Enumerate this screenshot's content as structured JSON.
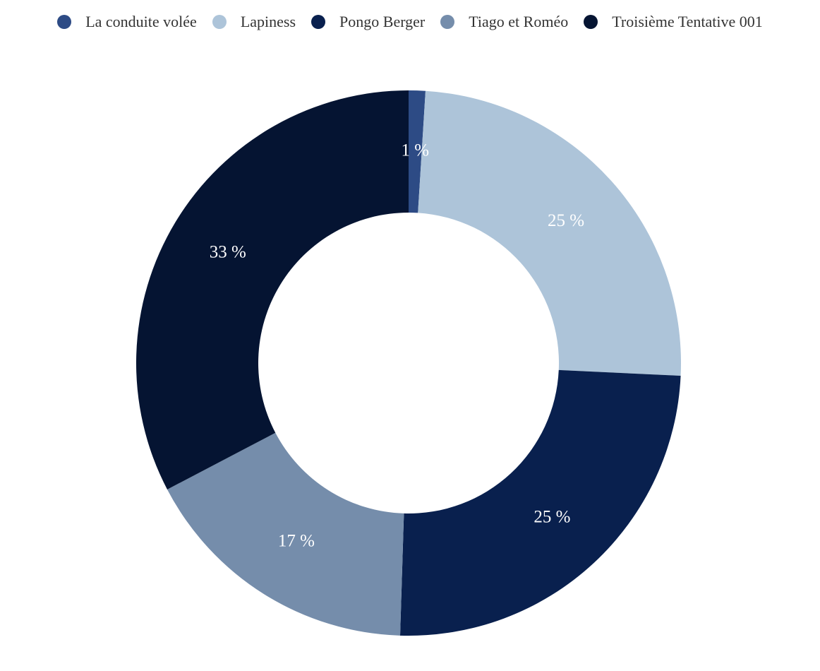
{
  "chart_data": {
    "type": "pie",
    "donut": true,
    "legend_position": "top",
    "slices": [
      {
        "name": "La conduite volée",
        "value": 1,
        "label": "1 %",
        "color": "#2d4b85"
      },
      {
        "name": "Lapiness",
        "value": 25,
        "label": "25 %",
        "color": "#adc4d9"
      },
      {
        "name": "Pongo Berger",
        "value": 25,
        "label": "25 %",
        "color": "#09204e"
      },
      {
        "name": "Tiago et Roméo",
        "value": 17,
        "label": "17 %",
        "color": "#758dab"
      },
      {
        "name": "Troisième Tentative 001",
        "value": 33,
        "label": "33 %",
        "color": "#051432"
      }
    ]
  }
}
